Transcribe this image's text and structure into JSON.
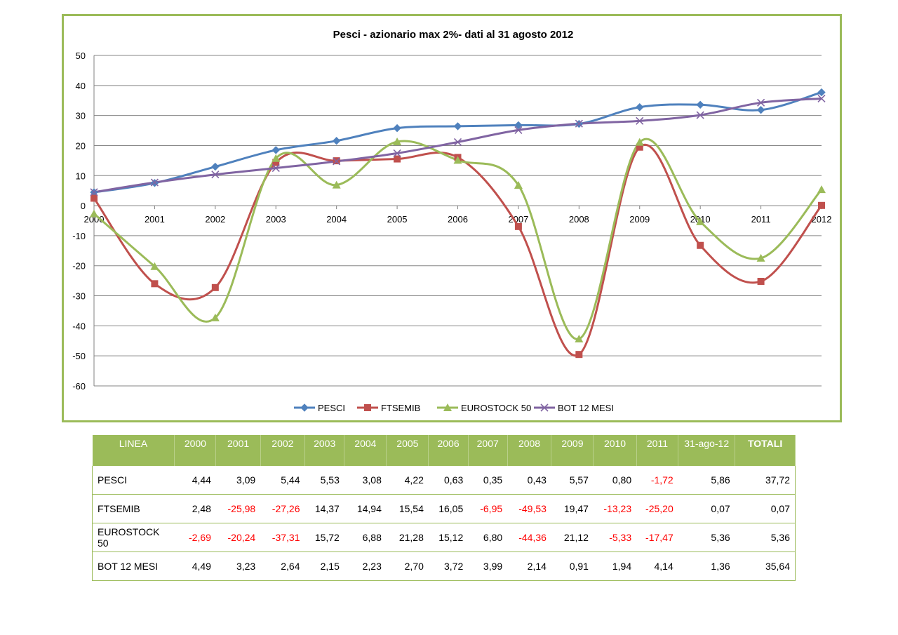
{
  "chart_data": {
    "type": "line",
    "title": "Pesci - azionario max 2%- dati al  31 agosto 2012",
    "x": [
      "2000",
      "2001",
      "2002",
      "2003",
      "2004",
      "2005",
      "2006",
      "2007",
      "2008",
      "2009",
      "2010",
      "2011",
      "2012"
    ],
    "ylim": [
      -60,
      50
    ],
    "yticks": [
      50,
      40,
      30,
      20,
      10,
      0,
      -10,
      -20,
      -30,
      -40,
      -50,
      -60
    ],
    "grid": true,
    "legend_position": "bottom",
    "series": [
      {
        "name": "PESCI",
        "color": "#4f81bd",
        "marker": "diamond",
        "values": [
          4.44,
          7.53,
          12.97,
          18.5,
          21.58,
          25.8,
          26.43,
          26.78,
          27.21,
          32.78,
          33.58,
          31.86,
          37.72
        ]
      },
      {
        "name": "FTSEMIB",
        "color": "#c0504d",
        "marker": "square",
        "values": [
          2.48,
          -25.98,
          -27.26,
          14.37,
          14.94,
          15.54,
          16.05,
          -6.95,
          -49.53,
          19.47,
          -13.23,
          -25.2,
          0.07
        ]
      },
      {
        "name": "EUROSTOCK 50",
        "color": "#9bbb59",
        "marker": "triangle",
        "values": [
          -2.69,
          -20.24,
          -37.31,
          15.72,
          6.88,
          21.28,
          15.12,
          6.8,
          -44.36,
          21.12,
          -5.33,
          -17.47,
          5.36
        ]
      },
      {
        "name": "BOT 12 MESI",
        "color": "#8064a2",
        "marker": "x",
        "values": [
          4.49,
          7.72,
          10.36,
          12.51,
          14.74,
          17.44,
          21.16,
          25.15,
          27.29,
          28.2,
          30.14,
          34.28,
          35.64
        ]
      }
    ]
  },
  "table": {
    "headers": [
      "LINEA",
      "2000",
      "2001",
      "2002",
      "2003",
      "2004",
      "2005",
      "2006",
      "2007",
      "2008",
      "2009",
      "2010",
      "2011",
      "31-ago-12",
      "TOTALI"
    ],
    "rows": [
      [
        "PESCI",
        "4,44",
        "3,09",
        "5,44",
        "5,53",
        "3,08",
        "4,22",
        "0,63",
        "0,35",
        "0,43",
        "5,57",
        "0,80",
        "-1,72",
        "5,86",
        "37,72"
      ],
      [
        "FTSEMIB",
        "2,48",
        "-25,98",
        "-27,26",
        "14,37",
        "14,94",
        "15,54",
        "16,05",
        "-6,95",
        "-49,53",
        "19,47",
        "-13,23",
        "-25,20",
        "0,07",
        "0,07"
      ],
      [
        "EUROSTOCK 50",
        "-2,69",
        "-20,24",
        "-37,31",
        "15,72",
        "6,88",
        "21,28",
        "15,12",
        "6,80",
        "-44,36",
        "21,12",
        "-5,33",
        "-17,47",
        "5,36",
        "5,36"
      ],
      [
        "BOT 12 MESI",
        "4,49",
        "3,23",
        "2,64",
        "2,15",
        "2,23",
        "2,70",
        "3,72",
        "3,99",
        "2,14",
        "0,91",
        "1,94",
        "4,14",
        "1,36",
        "35,64"
      ]
    ]
  }
}
